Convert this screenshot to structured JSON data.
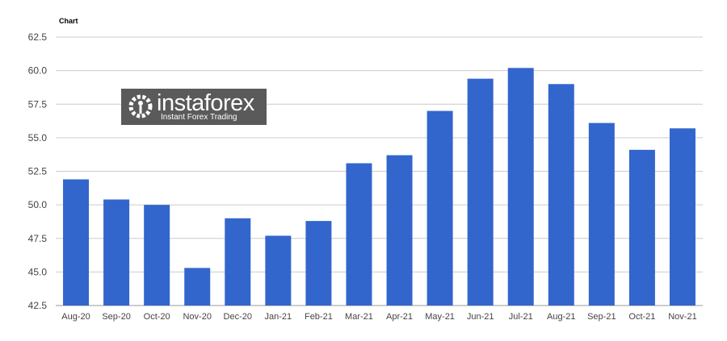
{
  "chart_data": {
    "type": "bar",
    "title": "Chart",
    "categories": [
      "Aug-20",
      "Sep-20",
      "Oct-20",
      "Nov-20",
      "Dec-20",
      "Jan-21",
      "Feb-21",
      "Mar-21",
      "Apr-21",
      "May-21",
      "Jun-21",
      "Jul-21",
      "Aug-21",
      "Sep-21",
      "Oct-21",
      "Nov-21"
    ],
    "values": [
      51.9,
      50.4,
      50.0,
      45.3,
      49.0,
      47.7,
      48.8,
      53.1,
      53.7,
      57.0,
      59.4,
      60.2,
      59.0,
      56.1,
      54.1,
      55.7
    ],
    "ylim": [
      42.5,
      62.5
    ],
    "yticks": [
      "42.5",
      "45.0",
      "47.5",
      "50.0",
      "52.5",
      "55.0",
      "57.5",
      "60.0",
      "62.5"
    ],
    "grid": true,
    "bar_color": "#3366cc",
    "xlabel": "",
    "ylabel": ""
  },
  "watermark": {
    "brand": "instaforex",
    "tagline": "Instant Forex Trading"
  }
}
